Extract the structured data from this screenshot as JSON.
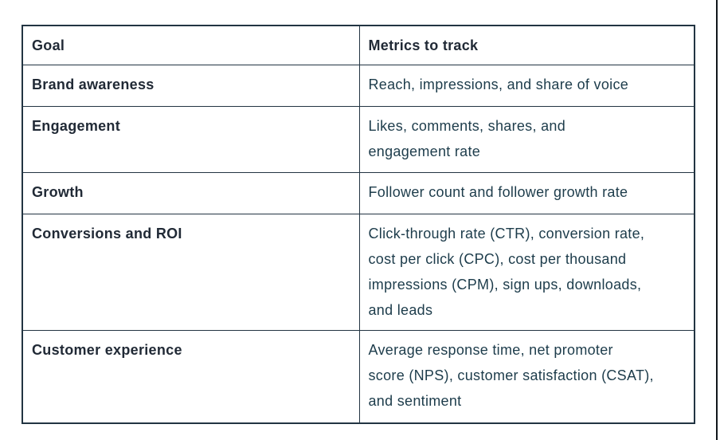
{
  "page": {
    "background": "#ffffff",
    "edge_line_color": "#10161b"
  },
  "table": {
    "border_color": "#223442",
    "text_colors": {
      "goal_column": "#212a36",
      "metrics_column": "#1d3c4b"
    },
    "header": {
      "goal": "Goal",
      "metrics": "Metrics to track"
    },
    "rows": [
      {
        "goal": "Brand awareness",
        "metrics": "Reach, impressions, and share of voice"
      },
      {
        "goal": "Engagement",
        "metrics": "Likes, comments, shares, and\nengagement rate"
      },
      {
        "goal": "Growth",
        "metrics": "Follower count and follower growth rate"
      },
      {
        "goal": "Conversions and ROI",
        "metrics": "Click-through rate (CTR), conversion rate,\ncost per click (CPC), cost per thousand\nimpressions (CPM), sign ups, downloads,\nand leads"
      },
      {
        "goal": "Customer experience",
        "metrics": "Average response time, net promoter\nscore (NPS), customer satisfaction (CSAT),\nand sentiment"
      }
    ]
  }
}
